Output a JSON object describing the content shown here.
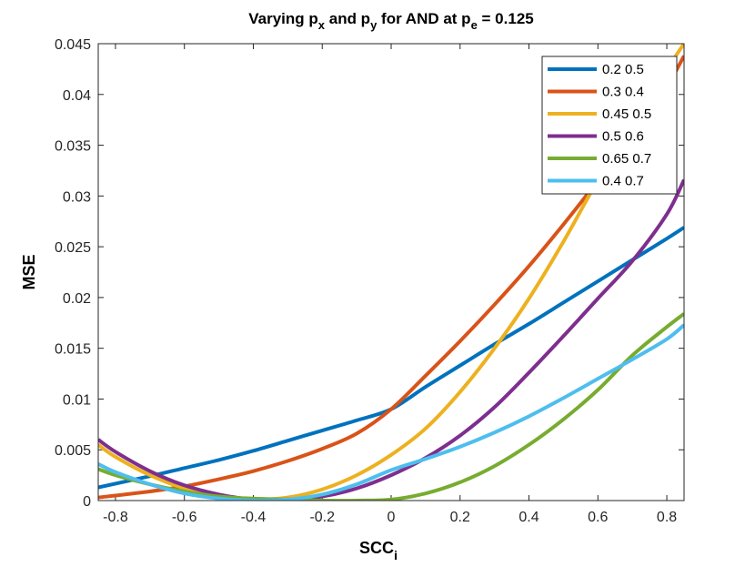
{
  "chart_data": {
    "type": "line",
    "title": {
      "prefix": "Varying p",
      "sub1": "x",
      "mid": " and p",
      "sub2": "y",
      "mid2": " for AND at p",
      "sub3": "e",
      "suffix": " = 0.125"
    },
    "xlabel": {
      "main": "SCC",
      "sub": "i"
    },
    "ylabel": "MSE",
    "xlim": [
      -0.85,
      0.85
    ],
    "ylim": [
      0,
      0.045
    ],
    "xticks": [
      -0.8,
      -0.6,
      -0.4,
      -0.2,
      0,
      0.2,
      0.4,
      0.6,
      0.8
    ],
    "xtick_labels": [
      "-0.8",
      "-0.6",
      "-0.4",
      "-0.2",
      "0",
      "0.2",
      "0.4",
      "0.6",
      "0.8"
    ],
    "yticks": [
      0,
      0.005,
      0.01,
      0.015,
      0.02,
      0.025,
      0.03,
      0.035,
      0.04,
      0.045
    ],
    "ytick_labels": [
      "0",
      "0.005",
      "0.01",
      "0.015",
      "0.02",
      "0.025",
      "0.03",
      "0.035",
      "0.04",
      "0.045"
    ],
    "legend_position": "top-right",
    "series": [
      {
        "name": "0.2  0.5",
        "color": "#0072BD",
        "x": [
          -0.85,
          -0.7,
          -0.6,
          -0.5,
          -0.4,
          -0.3,
          -0.2,
          -0.1,
          0,
          0.1,
          0.2,
          0.3,
          0.4,
          0.5,
          0.6,
          0.7,
          0.8,
          0.85
        ],
        "y": [
          0.0013,
          0.0024,
          0.0032,
          0.004,
          0.0049,
          0.0059,
          0.0069,
          0.0079,
          0.009,
          0.0112,
          0.0133,
          0.0154,
          0.0174,
          0.0195,
          0.0216,
          0.0237,
          0.0258,
          0.0269
        ]
      },
      {
        "name": "0.3 0.4",
        "color": "#D95319",
        "x": [
          -0.85,
          -0.7,
          -0.6,
          -0.5,
          -0.4,
          -0.3,
          -0.2,
          -0.1,
          0,
          0.1,
          0.2,
          0.3,
          0.4,
          0.5,
          0.6,
          0.7,
          0.8,
          0.85
        ],
        "y": [
          0.0003,
          0.0009,
          0.0014,
          0.0021,
          0.0029,
          0.0039,
          0.0051,
          0.0066,
          0.009,
          0.0123,
          0.0157,
          0.0193,
          0.0231,
          0.0272,
          0.0315,
          0.036,
          0.0408,
          0.0438
        ]
      },
      {
        "name": "0.45 0.5",
        "color": "#EDB120",
        "x": [
          -0.85,
          -0.8,
          -0.7,
          -0.6,
          -0.5,
          -0.4,
          -0.3,
          -0.2,
          -0.1,
          0,
          0.1,
          0.2,
          0.3,
          0.4,
          0.5,
          0.6,
          0.7,
          0.8,
          0.85
        ],
        "y": [
          0.0055,
          0.0043,
          0.0025,
          0.0012,
          0.0004,
          0.0001,
          0.0003,
          0.0011,
          0.0025,
          0.0045,
          0.0071,
          0.0107,
          0.015,
          0.0199,
          0.0255,
          0.0316,
          0.0375,
          0.0425,
          0.045
        ]
      },
      {
        "name": "0.5 0.6",
        "color": "#7E2F8E",
        "x": [
          -0.85,
          -0.8,
          -0.7,
          -0.6,
          -0.5,
          -0.4,
          -0.3,
          -0.2,
          -0.1,
          0,
          0.1,
          0.2,
          0.3,
          0.4,
          0.5,
          0.6,
          0.7,
          0.8,
          0.85
        ],
        "y": [
          0.006,
          0.0048,
          0.0029,
          0.0015,
          0.0006,
          0.0001,
          0.0001,
          0.0004,
          0.0012,
          0.0025,
          0.0042,
          0.0064,
          0.0092,
          0.0126,
          0.0162,
          0.0199,
          0.0236,
          0.0282,
          0.0316
        ]
      },
      {
        "name": "0.65 0.7",
        "color": "#77AC30",
        "x": [
          -0.85,
          -0.8,
          -0.7,
          -0.6,
          -0.5,
          -0.4,
          -0.3,
          -0.2,
          -0.1,
          0,
          0.1,
          0.2,
          0.3,
          0.4,
          0.5,
          0.6,
          0.7,
          0.8,
          0.85
        ],
        "y": [
          0.0031,
          0.0025,
          0.0016,
          0.0009,
          0.0004,
          0.0002,
          0.0001,
          0.0,
          0.0,
          0.0001,
          0.0007,
          0.0018,
          0.0034,
          0.0055,
          0.008,
          0.0109,
          0.0143,
          0.0171,
          0.0184
        ]
      },
      {
        "name": "0.4 0.7",
        "color": "#4DBEEE",
        "x": [
          -0.85,
          -0.8,
          -0.7,
          -0.6,
          -0.5,
          -0.4,
          -0.3,
          -0.2,
          -0.1,
          0,
          0.1,
          0.2,
          0.3,
          0.4,
          0.5,
          0.6,
          0.7,
          0.8,
          0.85
        ],
        "y": [
          0.0036,
          0.0028,
          0.0016,
          0.0007,
          0.0002,
          0.0,
          0.0001,
          0.0006,
          0.0016,
          0.003,
          0.0041,
          0.0053,
          0.0067,
          0.0083,
          0.0101,
          0.012,
          0.0139,
          0.0159,
          0.0173
        ]
      }
    ]
  }
}
